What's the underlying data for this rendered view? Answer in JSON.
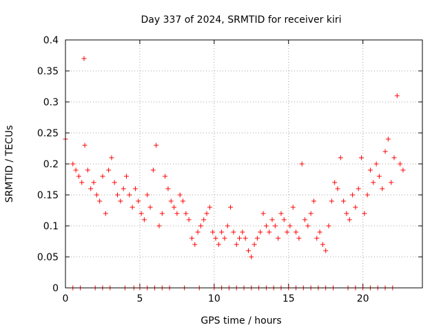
{
  "chart_data": {
    "type": "scatter",
    "title": "Day 337 of 2024, SRMTID for receiver kiri",
    "xlabel": "GPS time / hours",
    "ylabel": "SRMTID / TECUs",
    "xlim": [
      0,
      24
    ],
    "ylim": [
      0,
      0.4
    ],
    "xticks": [
      0,
      5,
      10,
      15,
      20
    ],
    "xtick_labels": [
      "0",
      "5",
      "10",
      "15",
      "20"
    ],
    "yticks": [
      0,
      0.05,
      0.1,
      0.15,
      0.2,
      0.25,
      0.3,
      0.35,
      0.4
    ],
    "ytick_labels": [
      "0",
      "0.05",
      "0.1",
      "0.15",
      "0.2",
      "0.25",
      "0.3",
      "0.35",
      "0.4"
    ],
    "grid": true,
    "marker": "+",
    "color": "#ff0000",
    "series": [
      {
        "name": "SRMTID",
        "x": [
          0.0,
          0.5,
          0.7,
          0.9,
          1.1,
          1.25,
          1.3,
          1.5,
          1.7,
          1.9,
          2.1,
          2.3,
          2.5,
          2.7,
          2.9,
          3.1,
          3.3,
          3.5,
          3.7,
          3.9,
          4.1,
          4.3,
          4.5,
          4.7,
          4.9,
          5.1,
          5.3,
          5.5,
          5.7,
          5.9,
          6.1,
          6.3,
          6.5,
          6.7,
          6.9,
          7.1,
          7.3,
          7.5,
          7.7,
          7.9,
          8.1,
          8.3,
          8.5,
          8.7,
          8.9,
          9.1,
          9.3,
          9.5,
          9.7,
          9.9,
          10.1,
          10.3,
          10.5,
          10.7,
          10.9,
          11.1,
          11.3,
          11.5,
          11.7,
          11.9,
          12.1,
          12.3,
          12.5,
          12.7,
          12.9,
          13.1,
          13.3,
          13.5,
          13.7,
          13.9,
          14.1,
          14.3,
          14.5,
          14.7,
          14.9,
          15.1,
          15.3,
          15.5,
          15.7,
          15.9,
          16.1,
          16.3,
          16.5,
          16.7,
          16.9,
          17.1,
          17.3,
          17.5,
          17.7,
          17.9,
          18.1,
          18.3,
          18.5,
          18.7,
          18.9,
          19.1,
          19.3,
          19.5,
          19.7,
          19.9,
          20.1,
          20.3,
          20.5,
          20.7,
          20.9,
          21.1,
          21.3,
          21.5,
          21.7,
          21.9,
          22.1,
          22.3,
          22.5,
          22.7
        ],
        "y": [
          0.24,
          0.2,
          0.19,
          0.18,
          0.17,
          0.37,
          0.23,
          0.19,
          0.16,
          0.17,
          0.15,
          0.14,
          0.18,
          0.12,
          0.19,
          0.21,
          0.17,
          0.15,
          0.14,
          0.16,
          0.18,
          0.15,
          0.13,
          0.16,
          0.14,
          0.12,
          0.11,
          0.15,
          0.13,
          0.19,
          0.23,
          0.1,
          0.12,
          0.18,
          0.16,
          0.14,
          0.13,
          0.12,
          0.15,
          0.14,
          0.12,
          0.11,
          0.08,
          0.07,
          0.09,
          0.1,
          0.11,
          0.12,
          0.13,
          0.09,
          0.08,
          0.07,
          0.09,
          0.08,
          0.1,
          0.13,
          0.09,
          0.07,
          0.08,
          0.09,
          0.08,
          0.06,
          0.05,
          0.07,
          0.08,
          0.09,
          0.12,
          0.1,
          0.09,
          0.11,
          0.1,
          0.08,
          0.12,
          0.11,
          0.09,
          0.1,
          0.13,
          0.09,
          0.08,
          0.2,
          0.11,
          0.1,
          0.12,
          0.14,
          0.08,
          0.09,
          0.07,
          0.06,
          0.1,
          0.14,
          0.17,
          0.16,
          0.21,
          0.14,
          0.12,
          0.11,
          0.15,
          0.13,
          0.16,
          0.21,
          0.12,
          0.15,
          0.19,
          0.17,
          0.2,
          0.18,
          0.16,
          0.22,
          0.24,
          0.17,
          0.21,
          0.31,
          0.2,
          0.19
        ]
      },
      {
        "name": "zero-level markers",
        "x": [
          0.5,
          1.0,
          2.0,
          2.5,
          3.0,
          4.0,
          4.6,
          5.0,
          5.5,
          6.0,
          6.5,
          7.0,
          8.0,
          9.0,
          10.0,
          10.5,
          11.0,
          11.5,
          12.0,
          12.5,
          13.0,
          13.5,
          14.0,
          14.5,
          15.0,
          15.5,
          16.0,
          16.5,
          17.0,
          17.5,
          18.0,
          19.0,
          19.5,
          20.0,
          20.5,
          21.0,
          21.5,
          22.0
        ],
        "y": [
          0,
          0,
          0,
          0,
          0,
          0,
          0,
          0,
          0,
          0,
          0,
          0,
          0,
          0,
          0,
          0,
          0,
          0,
          0,
          0,
          0,
          0,
          0,
          0,
          0,
          0,
          0,
          0,
          0,
          0,
          0,
          0,
          0,
          0,
          0,
          0,
          0,
          0
        ]
      }
    ]
  }
}
